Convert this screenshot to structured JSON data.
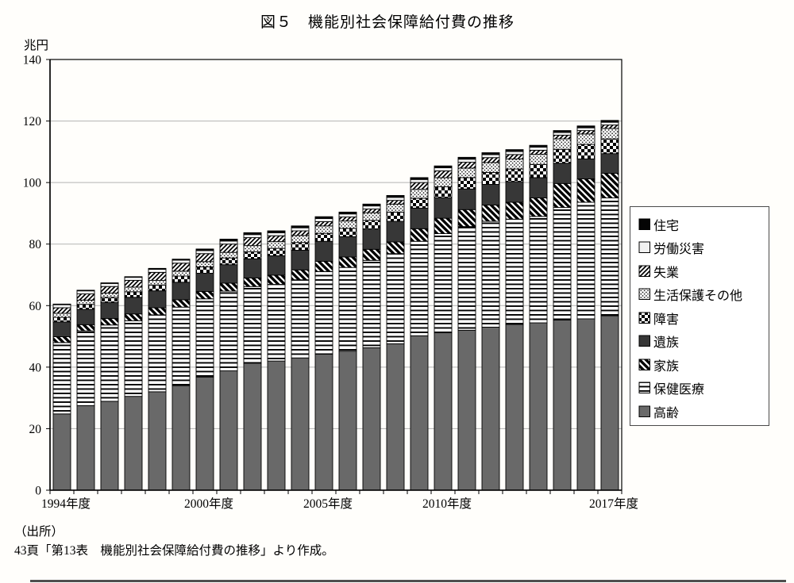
{
  "page": {
    "title": "図５　機能別社会保障給付費の推移"
  },
  "y_axis": {
    "unit": "兆円",
    "ticks": [
      0,
      20,
      40,
      60,
      80,
      100,
      120,
      140
    ]
  },
  "x_axis": {
    "labels": [
      {
        "index": 0,
        "text": "1994年度"
      },
      {
        "index": 6,
        "text": "2000年度"
      },
      {
        "index": 11,
        "text": "2005年度"
      },
      {
        "index": 16,
        "text": "2010年度"
      },
      {
        "index": 23,
        "text": "2017年度"
      }
    ]
  },
  "legend": {
    "items": [
      {
        "label": "住宅",
        "key": "jutaku"
      },
      {
        "label": "労働災害",
        "key": "rosai"
      },
      {
        "label": "失業",
        "key": "shitsugyo"
      },
      {
        "label": "生活保護その他",
        "key": "seiho"
      },
      {
        "label": "障害",
        "key": "shogai"
      },
      {
        "label": "遺族",
        "key": "izoku"
      },
      {
        "label": "家族",
        "key": "kazoku"
      },
      {
        "label": "保健医療",
        "key": "hoken"
      },
      {
        "label": "高齢",
        "key": "korei"
      }
    ]
  },
  "source": {
    "line1": "（出所）",
    "line2": "43頁「第13表　機能別社会保障給付費の推移」より作成。"
  },
  "colors": {
    "old_age_gray": "#696969",
    "survivors_dark": "#373737",
    "black": "#050505",
    "work_injury_white": "#f2f2f2",
    "grid": "#b3b3b3"
  },
  "chart_data": {
    "type": "bar",
    "stacked": true,
    "title": "図５　機能別社会保障給付費の推移",
    "ylabel": "兆円",
    "ylim": [
      0,
      140
    ],
    "ytick_step": 20,
    "grid": true,
    "legend_position": "right",
    "unit": "trillion yen",
    "categories": [
      1994,
      1995,
      1996,
      1997,
      1998,
      1999,
      2000,
      2001,
      2002,
      2003,
      2004,
      2005,
      2006,
      2007,
      2008,
      2009,
      2010,
      2011,
      2012,
      2013,
      2014,
      2015,
      2016,
      2017
    ],
    "stack_order": "bottom to top",
    "series": [
      {
        "name": "高齢",
        "key": "korei",
        "values": [
          24.8,
          27.5,
          28.9,
          30.5,
          32.0,
          34.0,
          36.8,
          38.8,
          41.3,
          42.0,
          43.0,
          44.2,
          45.2,
          46.3,
          47.6,
          50.2,
          51.2,
          52.0,
          53.0,
          53.9,
          54.4,
          55.3,
          55.7,
          56.7
        ]
      },
      {
        "name": "保健医療",
        "key": "hoken",
        "values": [
          23.2,
          24.3,
          24.8,
          24.6,
          25.0,
          25.5,
          25.4,
          25.9,
          24.9,
          24.9,
          25.4,
          26.9,
          27.2,
          28.4,
          29.3,
          30.7,
          32.2,
          33.7,
          34.4,
          34.2,
          34.6,
          36.6,
          37.9,
          38.3
        ]
      },
      {
        "name": "家族",
        "key": "kazoku",
        "values": [
          1.9,
          2.0,
          2.1,
          2.2,
          2.3,
          2.4,
          2.4,
          2.6,
          2.8,
          3.0,
          3.2,
          3.3,
          3.4,
          3.6,
          3.8,
          4.1,
          5.0,
          5.5,
          5.3,
          5.5,
          6.0,
          7.8,
          7.6,
          8.0
        ]
      },
      {
        "name": "遺族",
        "key": "izoku",
        "values": [
          4.8,
          5.0,
          5.2,
          5.4,
          5.5,
          5.7,
          5.9,
          6.0,
          6.2,
          6.3,
          6.4,
          6.5,
          6.6,
          6.6,
          6.7,
          6.7,
          6.7,
          6.7,
          6.7,
          6.7,
          6.6,
          6.6,
          6.5,
          6.4
        ]
      },
      {
        "name": "障害",
        "key": "shogai",
        "values": [
          1.5,
          1.6,
          1.7,
          1.8,
          1.9,
          2.0,
          2.1,
          2.2,
          2.3,
          2.4,
          2.5,
          2.6,
          2.7,
          2.8,
          3.0,
          3.2,
          3.5,
          3.7,
          3.9,
          4.1,
          4.3,
          4.5,
          4.7,
          4.8
        ]
      },
      {
        "name": "生活保護その他",
        "key": "seiho",
        "values": [
          1.3,
          1.4,
          1.4,
          1.5,
          1.5,
          1.6,
          1.7,
          1.8,
          2.0,
          2.2,
          2.3,
          2.4,
          2.4,
          2.5,
          2.6,
          2.9,
          3.0,
          3.1,
          3.2,
          3.3,
          3.3,
          3.4,
          3.4,
          3.4
        ]
      },
      {
        "name": "失業",
        "key": "shitsugyo",
        "values": [
          1.8,
          2.0,
          2.1,
          2.2,
          2.6,
          2.6,
          2.6,
          2.7,
          2.6,
          1.9,
          1.5,
          1.4,
          1.3,
          1.2,
          1.2,
          2.2,
          2.2,
          1.9,
          1.6,
          1.4,
          1.3,
          1.2,
          1.1,
          1.1
        ]
      },
      {
        "name": "労働災害",
        "key": "rosai",
        "values": [
          1.0,
          1.0,
          1.0,
          1.0,
          1.0,
          1.0,
          1.0,
          1.0,
          1.0,
          1.0,
          1.0,
          1.0,
          1.0,
          1.0,
          1.0,
          1.0,
          1.0,
          1.0,
          1.0,
          1.0,
          1.0,
          0.9,
          0.9,
          0.9
        ]
      },
      {
        "name": "住宅",
        "key": "jutaku",
        "values": [
          0.2,
          0.2,
          0.2,
          0.2,
          0.3,
          0.3,
          0.5,
          0.6,
          0.6,
          0.6,
          0.6,
          0.6,
          0.6,
          0.6,
          0.6,
          0.6,
          0.6,
          0.6,
          0.6,
          0.6,
          0.6,
          0.6,
          0.6,
          0.6
        ]
      }
    ],
    "totals": [
      60.5,
      65.0,
      67.4,
      69.4,
      72.1,
      75.1,
      78.4,
      81.6,
      83.7,
      84.3,
      85.9,
      88.9,
      90.4,
      93.0,
      95.8,
      101.6,
      105.4,
      108.2,
      109.7,
      110.7,
      112.1,
      116.9,
      118.4,
      120.2
    ]
  }
}
